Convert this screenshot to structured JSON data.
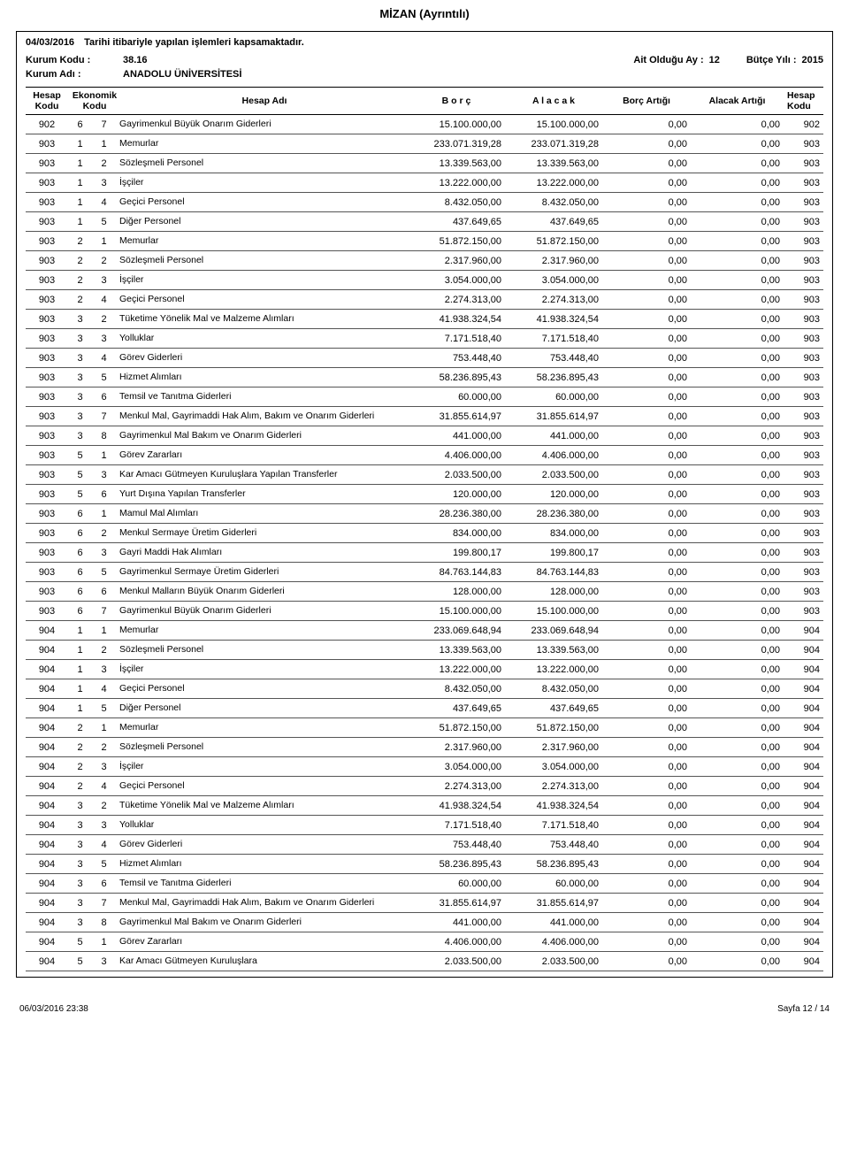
{
  "doc_title": "MİZAN  (Ayrıntılı)",
  "subtitle_date": "04/03/2016",
  "subtitle_text": "Tarihi itibariyle yapılan işlemleri kapsamaktadır.",
  "kurum_kodu_label": "Kurum  Kodu  :",
  "kurum_kodu_value": "38.16",
  "kurum_adi_label": "Kurum Adı  :",
  "kurum_adi_value": "ANADOLU ÜNİVERSİTESİ",
  "ait_ay_label": "Ait Olduğu Ay  :",
  "ait_ay_value": "12",
  "butce_label": "Bütçe Yılı  :",
  "butce_value": "2015",
  "headers": {
    "hesap_kodu": "Hesap Kodu",
    "ekonomik_kodu": "Ekonomik Kodu",
    "hesap_adi": "Hesap Adı",
    "borc": "B  o  r  ç",
    "alacak": "A  l  a  c  a  k",
    "borc_artigi": "Borç Artığı",
    "alacak_artigi": "Alacak Artığı",
    "hesap_kodu2": "Hesap Kodu"
  },
  "rows": [
    {
      "hk": "902",
      "e1": "6",
      "e2": "7",
      "ad": "Gayrimenkul Büyük Onarım Giderleri",
      "borc": "15.100.000,00",
      "alacak": "15.100.000,00",
      "ba": "0,00",
      "aa": "0,00",
      "hk2": "902"
    },
    {
      "hk": "903",
      "e1": "1",
      "e2": "1",
      "ad": "Memurlar",
      "borc": "233.071.319,28",
      "alacak": "233.071.319,28",
      "ba": "0,00",
      "aa": "0,00",
      "hk2": "903"
    },
    {
      "hk": "903",
      "e1": "1",
      "e2": "2",
      "ad": "Sözleşmeli Personel",
      "borc": "13.339.563,00",
      "alacak": "13.339.563,00",
      "ba": "0,00",
      "aa": "0,00",
      "hk2": "903"
    },
    {
      "hk": "903",
      "e1": "1",
      "e2": "3",
      "ad": "İşçiler",
      "borc": "13.222.000,00",
      "alacak": "13.222.000,00",
      "ba": "0,00",
      "aa": "0,00",
      "hk2": "903"
    },
    {
      "hk": "903",
      "e1": "1",
      "e2": "4",
      "ad": "Geçici Personel",
      "borc": "8.432.050,00",
      "alacak": "8.432.050,00",
      "ba": "0,00",
      "aa": "0,00",
      "hk2": "903"
    },
    {
      "hk": "903",
      "e1": "1",
      "e2": "5",
      "ad": "Diğer Personel",
      "borc": "437.649,65",
      "alacak": "437.649,65",
      "ba": "0,00",
      "aa": "0,00",
      "hk2": "903"
    },
    {
      "hk": "903",
      "e1": "2",
      "e2": "1",
      "ad": "Memurlar",
      "borc": "51.872.150,00",
      "alacak": "51.872.150,00",
      "ba": "0,00",
      "aa": "0,00",
      "hk2": "903"
    },
    {
      "hk": "903",
      "e1": "2",
      "e2": "2",
      "ad": "Sözleşmeli Personel",
      "borc": "2.317.960,00",
      "alacak": "2.317.960,00",
      "ba": "0,00",
      "aa": "0,00",
      "hk2": "903"
    },
    {
      "hk": "903",
      "e1": "2",
      "e2": "3",
      "ad": "İşçiler",
      "borc": "3.054.000,00",
      "alacak": "3.054.000,00",
      "ba": "0,00",
      "aa": "0,00",
      "hk2": "903"
    },
    {
      "hk": "903",
      "e1": "2",
      "e2": "4",
      "ad": "Geçici Personel",
      "borc": "2.274.313,00",
      "alacak": "2.274.313,00",
      "ba": "0,00",
      "aa": "0,00",
      "hk2": "903"
    },
    {
      "hk": "903",
      "e1": "3",
      "e2": "2",
      "ad": "Tüketime Yönelik Mal ve Malzeme Alımları",
      "borc": "41.938.324,54",
      "alacak": "41.938.324,54",
      "ba": "0,00",
      "aa": "0,00",
      "hk2": "903"
    },
    {
      "hk": "903",
      "e1": "3",
      "e2": "3",
      "ad": "Yolluklar",
      "borc": "7.171.518,40",
      "alacak": "7.171.518,40",
      "ba": "0,00",
      "aa": "0,00",
      "hk2": "903"
    },
    {
      "hk": "903",
      "e1": "3",
      "e2": "4",
      "ad": "Görev Giderleri",
      "borc": "753.448,40",
      "alacak": "753.448,40",
      "ba": "0,00",
      "aa": "0,00",
      "hk2": "903"
    },
    {
      "hk": "903",
      "e1": "3",
      "e2": "5",
      "ad": "Hizmet Alımları",
      "borc": "58.236.895,43",
      "alacak": "58.236.895,43",
      "ba": "0,00",
      "aa": "0,00",
      "hk2": "903"
    },
    {
      "hk": "903",
      "e1": "3",
      "e2": "6",
      "ad": "Temsil ve Tanıtma Giderleri",
      "borc": "60.000,00",
      "alacak": "60.000,00",
      "ba": "0,00",
      "aa": "0,00",
      "hk2": "903"
    },
    {
      "hk": "903",
      "e1": "3",
      "e2": "7",
      "ad": "Menkul Mal, Gayrimaddi Hak Alım, Bakım ve Onarım Giderleri",
      "borc": "31.855.614,97",
      "alacak": "31.855.614,97",
      "ba": "0,00",
      "aa": "0,00",
      "hk2": "903"
    },
    {
      "hk": "903",
      "e1": "3",
      "e2": "8",
      "ad": "Gayrimenkul Mal Bakım ve Onarım Giderleri",
      "borc": "441.000,00",
      "alacak": "441.000,00",
      "ba": "0,00",
      "aa": "0,00",
      "hk2": "903"
    },
    {
      "hk": "903",
      "e1": "5",
      "e2": "1",
      "ad": "Görev Zararları",
      "borc": "4.406.000,00",
      "alacak": "4.406.000,00",
      "ba": "0,00",
      "aa": "0,00",
      "hk2": "903"
    },
    {
      "hk": "903",
      "e1": "5",
      "e2": "3",
      "ad": "Kar Amacı Gütmeyen Kuruluşlara Yapılan Transferler",
      "borc": "2.033.500,00",
      "alacak": "2.033.500,00",
      "ba": "0,00",
      "aa": "0,00",
      "hk2": "903"
    },
    {
      "hk": "903",
      "e1": "5",
      "e2": "6",
      "ad": "Yurt Dışına Yapılan Transferler",
      "borc": "120.000,00",
      "alacak": "120.000,00",
      "ba": "0,00",
      "aa": "0,00",
      "hk2": "903"
    },
    {
      "hk": "903",
      "e1": "6",
      "e2": "1",
      "ad": "Mamul Mal Alımları",
      "borc": "28.236.380,00",
      "alacak": "28.236.380,00",
      "ba": "0,00",
      "aa": "0,00",
      "hk2": "903"
    },
    {
      "hk": "903",
      "e1": "6",
      "e2": "2",
      "ad": "Menkul Sermaye Üretim Giderleri",
      "borc": "834.000,00",
      "alacak": "834.000,00",
      "ba": "0,00",
      "aa": "0,00",
      "hk2": "903"
    },
    {
      "hk": "903",
      "e1": "6",
      "e2": "3",
      "ad": "Gayri Maddi Hak Alımları",
      "borc": "199.800,17",
      "alacak": "199.800,17",
      "ba": "0,00",
      "aa": "0,00",
      "hk2": "903"
    },
    {
      "hk": "903",
      "e1": "6",
      "e2": "5",
      "ad": "Gayrimenkul Sermaye Üretim Giderleri",
      "borc": "84.763.144,83",
      "alacak": "84.763.144,83",
      "ba": "0,00",
      "aa": "0,00",
      "hk2": "903"
    },
    {
      "hk": "903",
      "e1": "6",
      "e2": "6",
      "ad": "Menkul Malların Büyük Onarım Giderleri",
      "borc": "128.000,00",
      "alacak": "128.000,00",
      "ba": "0,00",
      "aa": "0,00",
      "hk2": "903"
    },
    {
      "hk": "903",
      "e1": "6",
      "e2": "7",
      "ad": "Gayrimenkul Büyük Onarım Giderleri",
      "borc": "15.100.000,00",
      "alacak": "15.100.000,00",
      "ba": "0,00",
      "aa": "0,00",
      "hk2": "903"
    },
    {
      "hk": "904",
      "e1": "1",
      "e2": "1",
      "ad": "Memurlar",
      "borc": "233.069.648,94",
      "alacak": "233.069.648,94",
      "ba": "0,00",
      "aa": "0,00",
      "hk2": "904"
    },
    {
      "hk": "904",
      "e1": "1",
      "e2": "2",
      "ad": "Sözleşmeli Personel",
      "borc": "13.339.563,00",
      "alacak": "13.339.563,00",
      "ba": "0,00",
      "aa": "0,00",
      "hk2": "904"
    },
    {
      "hk": "904",
      "e1": "1",
      "e2": "3",
      "ad": "İşçiler",
      "borc": "13.222.000,00",
      "alacak": "13.222.000,00",
      "ba": "0,00",
      "aa": "0,00",
      "hk2": "904"
    },
    {
      "hk": "904",
      "e1": "1",
      "e2": "4",
      "ad": "Geçici Personel",
      "borc": "8.432.050,00",
      "alacak": "8.432.050,00",
      "ba": "0,00",
      "aa": "0,00",
      "hk2": "904"
    },
    {
      "hk": "904",
      "e1": "1",
      "e2": "5",
      "ad": "Diğer Personel",
      "borc": "437.649,65",
      "alacak": "437.649,65",
      "ba": "0,00",
      "aa": "0,00",
      "hk2": "904"
    },
    {
      "hk": "904",
      "e1": "2",
      "e2": "1",
      "ad": "Memurlar",
      "borc": "51.872.150,00",
      "alacak": "51.872.150,00",
      "ba": "0,00",
      "aa": "0,00",
      "hk2": "904"
    },
    {
      "hk": "904",
      "e1": "2",
      "e2": "2",
      "ad": "Sözleşmeli Personel",
      "borc": "2.317.960,00",
      "alacak": "2.317.960,00",
      "ba": "0,00",
      "aa": "0,00",
      "hk2": "904"
    },
    {
      "hk": "904",
      "e1": "2",
      "e2": "3",
      "ad": "İşçiler",
      "borc": "3.054.000,00",
      "alacak": "3.054.000,00",
      "ba": "0,00",
      "aa": "0,00",
      "hk2": "904"
    },
    {
      "hk": "904",
      "e1": "2",
      "e2": "4",
      "ad": "Geçici Personel",
      "borc": "2.274.313,00",
      "alacak": "2.274.313,00",
      "ba": "0,00",
      "aa": "0,00",
      "hk2": "904"
    },
    {
      "hk": "904",
      "e1": "3",
      "e2": "2",
      "ad": "Tüketime Yönelik Mal ve Malzeme Alımları",
      "borc": "41.938.324,54",
      "alacak": "41.938.324,54",
      "ba": "0,00",
      "aa": "0,00",
      "hk2": "904"
    },
    {
      "hk": "904",
      "e1": "3",
      "e2": "3",
      "ad": "Yolluklar",
      "borc": "7.171.518,40",
      "alacak": "7.171.518,40",
      "ba": "0,00",
      "aa": "0,00",
      "hk2": "904"
    },
    {
      "hk": "904",
      "e1": "3",
      "e2": "4",
      "ad": "Görev Giderleri",
      "borc": "753.448,40",
      "alacak": "753.448,40",
      "ba": "0,00",
      "aa": "0,00",
      "hk2": "904"
    },
    {
      "hk": "904",
      "e1": "3",
      "e2": "5",
      "ad": "Hizmet Alımları",
      "borc": "58.236.895,43",
      "alacak": "58.236.895,43",
      "ba": "0,00",
      "aa": "0,00",
      "hk2": "904"
    },
    {
      "hk": "904",
      "e1": "3",
      "e2": "6",
      "ad": "Temsil ve Tanıtma Giderleri",
      "borc": "60.000,00",
      "alacak": "60.000,00",
      "ba": "0,00",
      "aa": "0,00",
      "hk2": "904"
    },
    {
      "hk": "904",
      "e1": "3",
      "e2": "7",
      "ad": "Menkul Mal, Gayrimaddi Hak Alım, Bakım ve Onarım Giderleri",
      "borc": "31.855.614,97",
      "alacak": "31.855.614,97",
      "ba": "0,00",
      "aa": "0,00",
      "hk2": "904"
    },
    {
      "hk": "904",
      "e1": "3",
      "e2": "8",
      "ad": "Gayrimenkul Mal Bakım ve Onarım Giderleri",
      "borc": "441.000,00",
      "alacak": "441.000,00",
      "ba": "0,00",
      "aa": "0,00",
      "hk2": "904"
    },
    {
      "hk": "904",
      "e1": "5",
      "e2": "1",
      "ad": "Görev Zararları",
      "borc": "4.406.000,00",
      "alacak": "4.406.000,00",
      "ba": "0,00",
      "aa": "0,00",
      "hk2": "904"
    },
    {
      "hk": "904",
      "e1": "5",
      "e2": "3",
      "ad": "Kar Amacı Gütmeyen Kuruluşlara",
      "borc": "2.033.500,00",
      "alacak": "2.033.500,00",
      "ba": "0,00",
      "aa": "0,00",
      "hk2": "904"
    }
  ],
  "footer_left": "06/03/2016  23:38",
  "footer_right": "Sayfa 12 / 14"
}
